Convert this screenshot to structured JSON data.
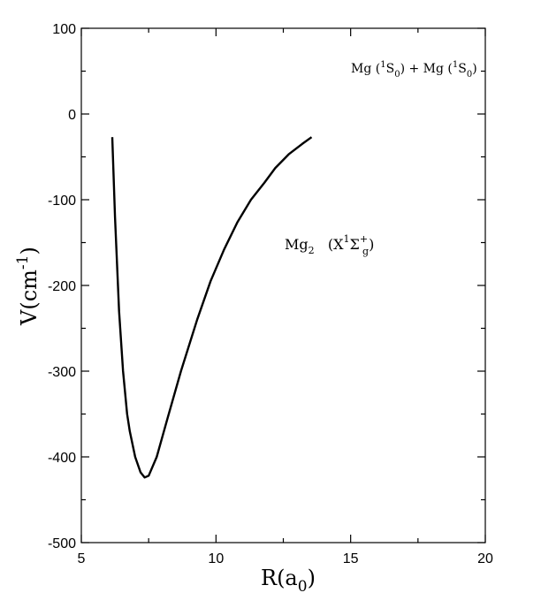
{
  "chart_data": {
    "type": "line",
    "title": "",
    "xlabel": "R(a0)",
    "xlabel_parts": {
      "base": "R(a",
      "sub": "0",
      "close": ")"
    },
    "ylabel": "V(cm-1)",
    "ylabel_parts": {
      "base": "V(cm",
      "sup": "-1",
      "close": ")"
    },
    "xlim": [
      5,
      20
    ],
    "ylim": [
      -500,
      100
    ],
    "xticks": [
      5,
      10,
      15,
      20
    ],
    "yticks": [
      100,
      0,
      -100,
      -200,
      -300,
      -400,
      -500
    ],
    "xtick_labels": [
      "5",
      "10",
      "15",
      "20"
    ],
    "ytick_labels": [
      "100",
      "0",
      "-100",
      "-200",
      "-300",
      "-400",
      "-500"
    ],
    "grid": false,
    "series": [
      {
        "x": [
          6.15,
          6.25,
          6.4,
          6.55,
          6.7,
          6.8,
          7.0,
          7.2,
          7.35,
          7.5,
          7.8,
          8.2,
          8.7,
          9.3,
          9.8,
          10.3,
          10.8,
          11.3,
          11.8,
          12.2,
          12.7,
          13.2,
          13.55
        ],
        "y": [
          -27,
          -120,
          -230,
          -300,
          -350,
          -370,
          -400,
          -418,
          -424,
          -422,
          -400,
          -355,
          -300,
          -240,
          -195,
          -158,
          -126,
          -100,
          -80,
          -63,
          -47,
          -35,
          -27
        ]
      }
    ],
    "annotations": [
      {
        "text": "Mg (1S0) + Mg (1S0)",
        "parts": [
          "Mg (",
          "1",
          "S",
          "0",
          ") + Mg (",
          "1",
          "S",
          "0",
          ")"
        ]
      },
      {
        "text": "Mg2 (X1Σ+g)",
        "parts": [
          "Mg",
          "2",
          "   (X",
          "1",
          "Σ",
          "+",
          "g",
          ")"
        ]
      }
    ]
  }
}
